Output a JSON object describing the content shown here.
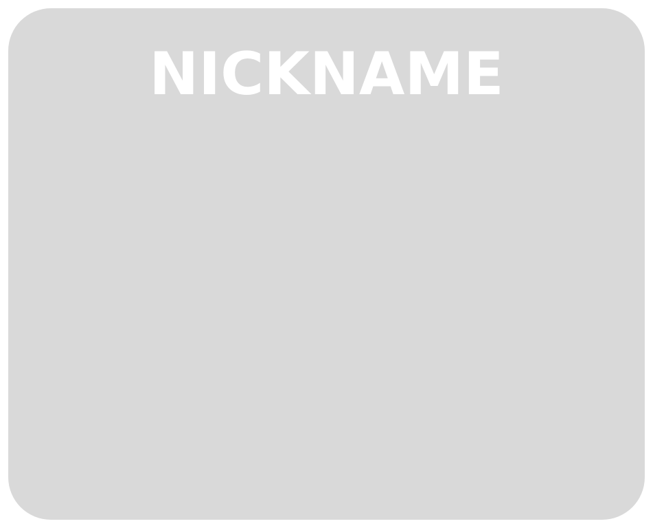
{
  "card": {
    "title": "NICKNAME",
    "background_color": "#d9d9d9",
    "title_color": "#ffffff"
  }
}
